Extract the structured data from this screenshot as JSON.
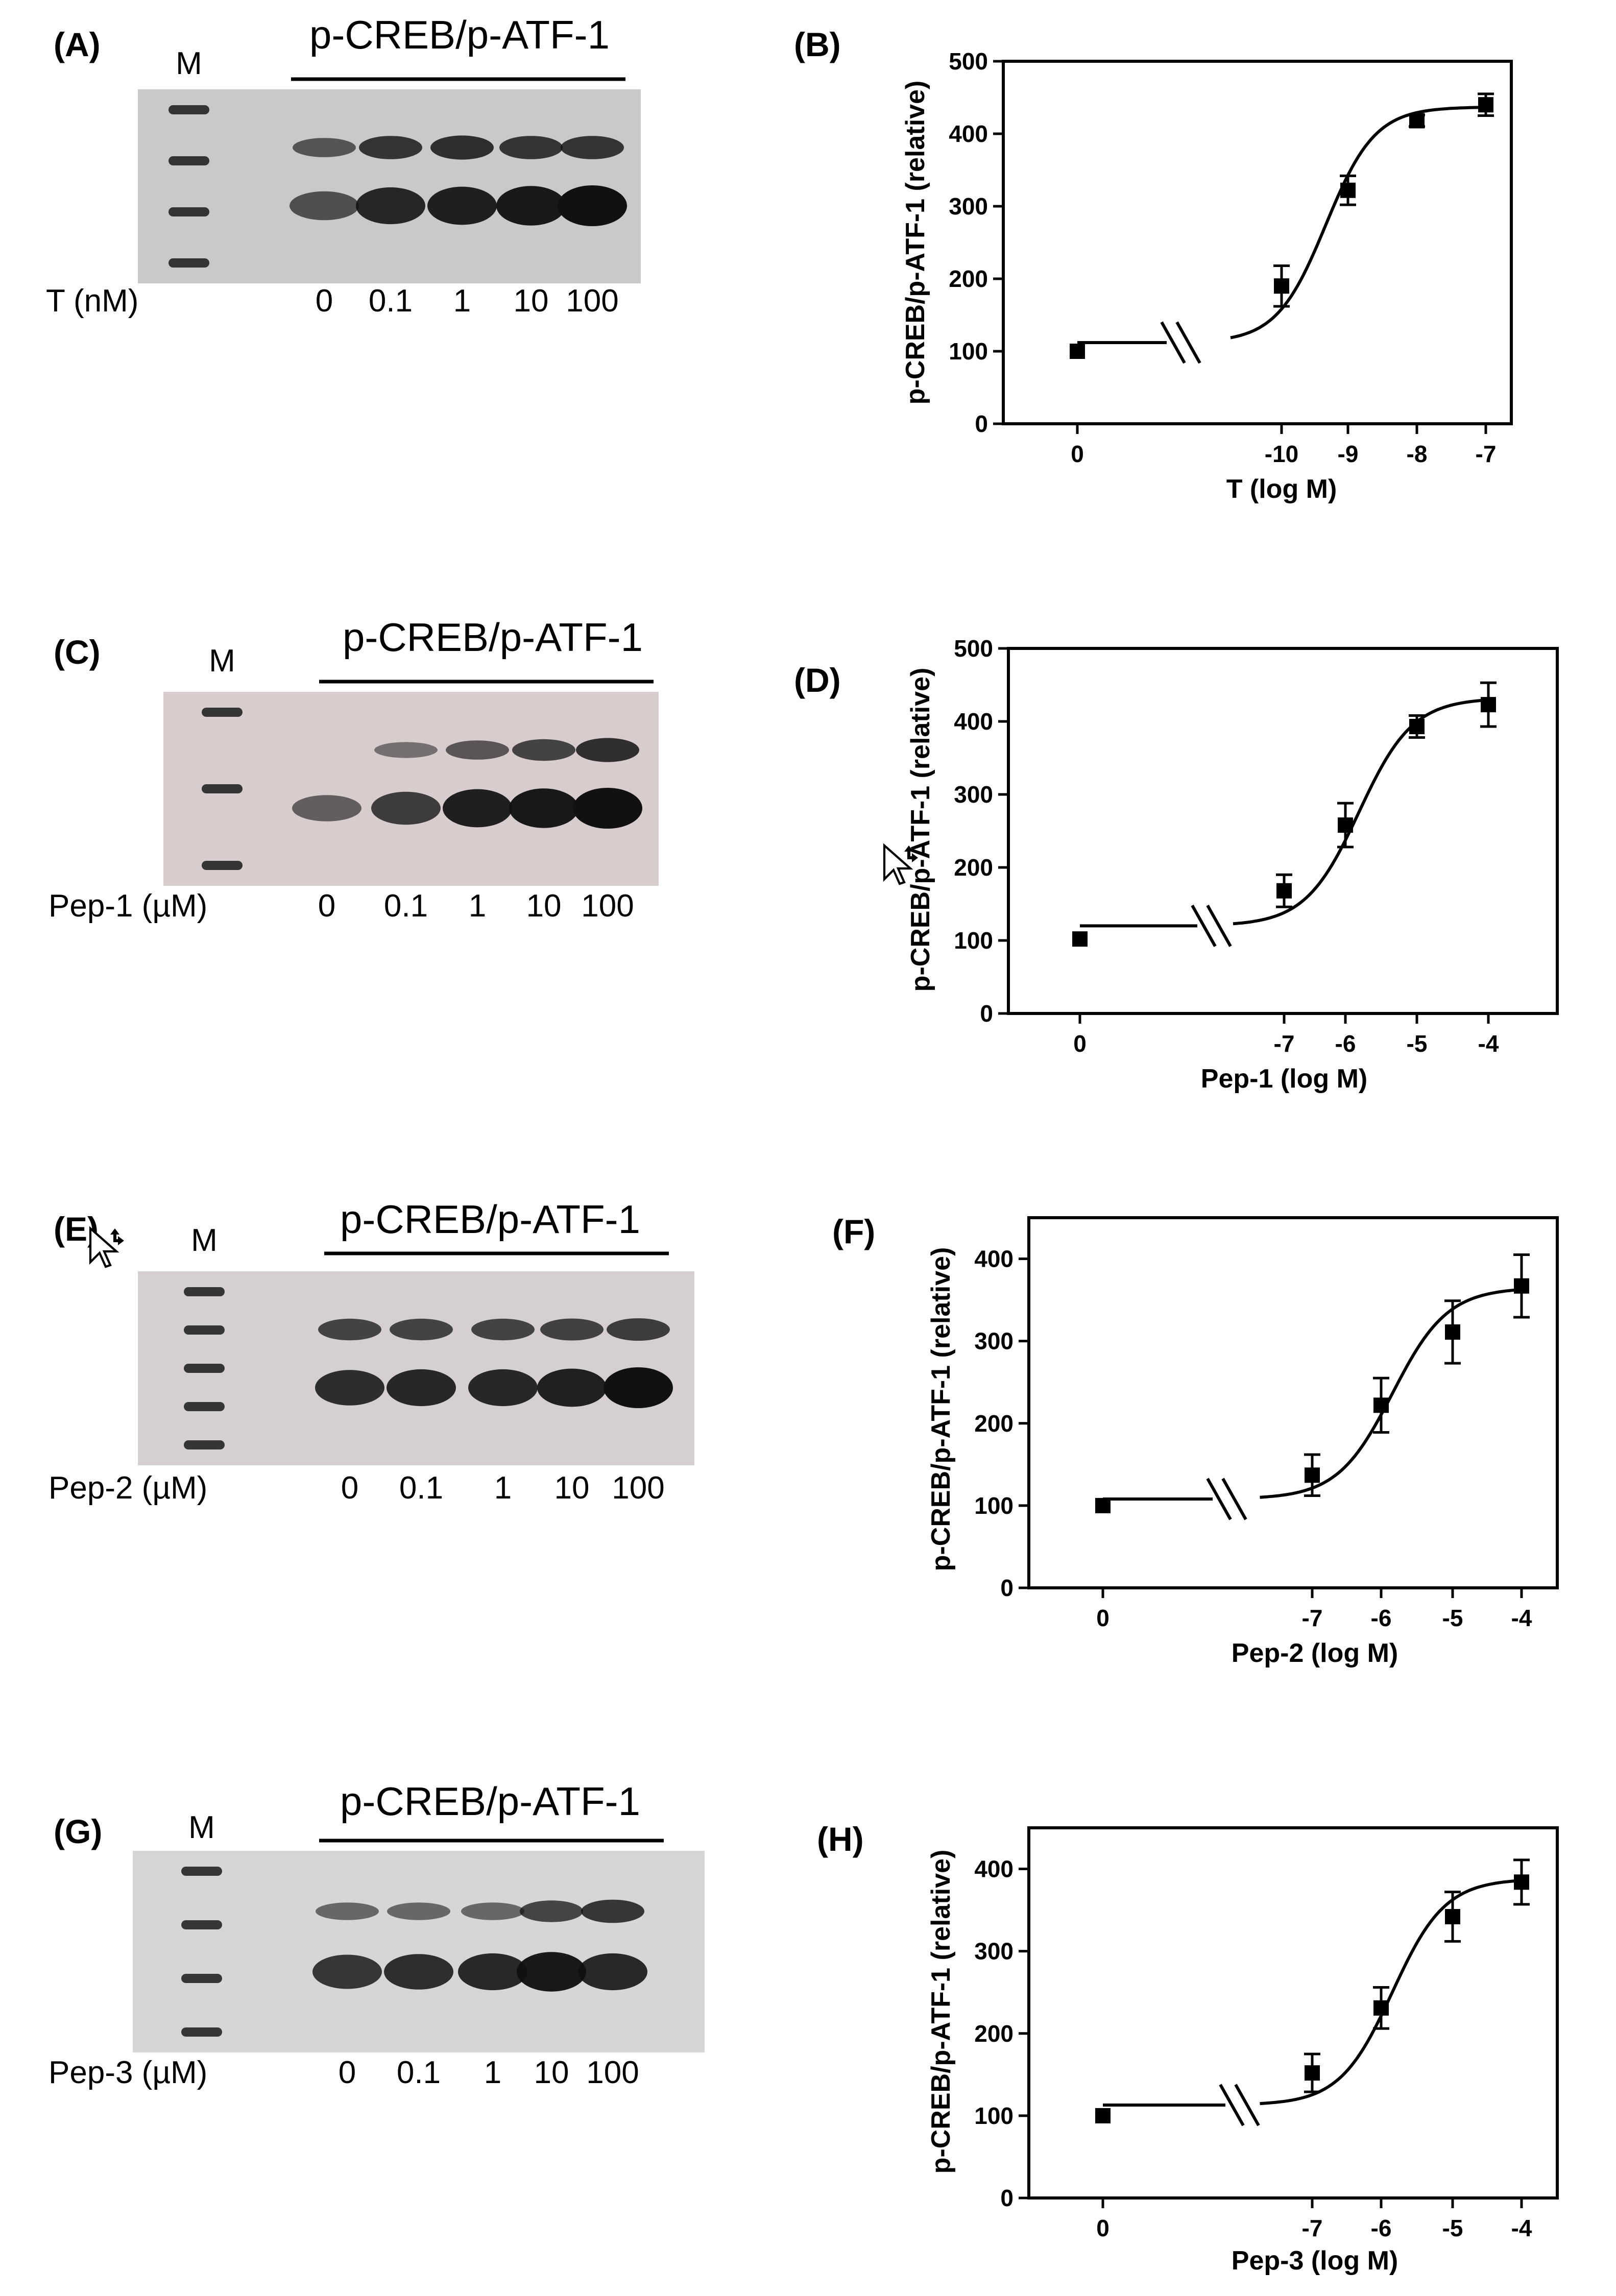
{
  "common": {
    "blot_title": "p-CREB/p-ATF-1",
    "marker_label": "M",
    "ylabel": "p-CREB/p-ATF-1 (relative)"
  },
  "panels": [
    {
      "blot_letter": "(A)",
      "chart_letter": "(B)",
      "dose_label": "T (nM)",
      "lanes": [
        "0",
        "0.1",
        "1",
        "10",
        "100"
      ],
      "bg": "#c9c9c9",
      "upper_band": [
        0.55,
        0.8,
        0.85,
        0.8,
        0.8
      ],
      "lower_band": [
        0.55,
        0.85,
        0.9,
        0.95,
        1.0
      ],
      "marker_bands": 4
    },
    {
      "blot_letter": "(C)",
      "chart_letter": "(D)",
      "dose_label": "Pep-1 (µM)",
      "lanes": [
        "0",
        "0.1",
        "1",
        "10",
        "100"
      ],
      "bg": "#d8cccc",
      "upper_band": [
        0.0,
        0.35,
        0.55,
        0.7,
        0.85
      ],
      "lower_band": [
        0.45,
        0.7,
        0.9,
        0.95,
        1.0
      ],
      "marker_bands": 3
    },
    {
      "blot_letter": "(E)",
      "chart_letter": "(F)",
      "dose_label": "Pep-2 (µM)",
      "lanes": [
        "0",
        "0.1",
        "1",
        "10",
        "100"
      ],
      "bg": "#d5cfcf",
      "upper_band": [
        0.7,
        0.7,
        0.7,
        0.72,
        0.75
      ],
      "lower_band": [
        0.8,
        0.85,
        0.85,
        0.9,
        1.0
      ],
      "marker_bands": 5
    },
    {
      "blot_letter": "(G)",
      "chart_letter": "(H)",
      "dose_label": "Pep-3 (µM)",
      "lanes": [
        "0",
        "0.1",
        "1",
        "10",
        "100"
      ],
      "bg": "#d6d6d6",
      "upper_band": [
        0.45,
        0.45,
        0.45,
        0.7,
        0.8
      ],
      "lower_band": [
        0.75,
        0.8,
        0.85,
        0.95,
        0.85
      ],
      "marker_bands": 4
    }
  ],
  "chart_data": [
    {
      "type": "scatter",
      "title": "",
      "xlabel": "T (log M)",
      "ylabel": "p-CREB/p-ATF-1 (relative)",
      "ylim": [
        0,
        500
      ],
      "yticks": [
        0,
        100,
        200,
        300,
        400,
        500
      ],
      "xtick_labels": [
        "0",
        "-10",
        "-9",
        "-8",
        "-7"
      ],
      "x": [
        0,
        -10,
        -9,
        -8,
        -7
      ],
      "y": [
        100,
        190,
        322,
        418,
        440
      ],
      "err": [
        0,
        28,
        20,
        8,
        15
      ],
      "fit": {
        "bottom": 112,
        "top": 437,
        "log_ec50": -9.35,
        "hill": 1.2,
        "baseline_y": 112
      }
    },
    {
      "type": "scatter",
      "title": "",
      "xlabel": "Pep-1 (log M)",
      "ylabel": "p-CREB/p-ATF-1 (relative)",
      "ylim": [
        0,
        500
      ],
      "yticks": [
        0,
        100,
        200,
        300,
        400,
        500
      ],
      "xtick_labels": [
        "0",
        "-7",
        "-6",
        "-5",
        "-4"
      ],
      "x": [
        0,
        -7,
        -6,
        -5,
        -4
      ],
      "y": [
        102,
        168,
        258,
        393,
        423
      ],
      "err": [
        0,
        22,
        30,
        15,
        30
      ],
      "fit": {
        "bottom": 120,
        "top": 432,
        "log_ec50": -5.9,
        "hill": 1.1,
        "baseline_y": 120
      }
    },
    {
      "type": "scatter",
      "title": "",
      "xlabel": "Pep-2 (log M)",
      "ylabel": "p-CREB/p-ATF-1 (relative)",
      "ylim": [
        0,
        450
      ],
      "yticks": [
        0,
        100,
        200,
        300,
        400
      ],
      "xtick_labels": [
        "0",
        "-7",
        "-6",
        "-5",
        "-4"
      ],
      "x": [
        0,
        -7,
        -6,
        -5,
        -4
      ],
      "y": [
        100,
        137,
        222,
        311,
        367
      ],
      "err": [
        0,
        25,
        33,
        38,
        38
      ],
      "fit": {
        "bottom": 108,
        "top": 365,
        "log_ec50": -5.85,
        "hill": 1.1,
        "baseline_y": 108
      }
    },
    {
      "type": "scatter",
      "title": "",
      "xlabel": "Pep-3 (log M)",
      "ylabel": "p-CREB/p-ATF-1 (relative)",
      "ylim": [
        0,
        450
      ],
      "yticks": [
        0,
        100,
        200,
        300,
        400
      ],
      "xtick_labels": [
        "0",
        "-7",
        "-6",
        "-5",
        "-4"
      ],
      "x": [
        0,
        -7,
        -6,
        -5,
        -4
      ],
      "y": [
        100,
        152,
        231,
        342,
        384
      ],
      "err": [
        0,
        23,
        25,
        30,
        27
      ],
      "fit": {
        "bottom": 113,
        "top": 388,
        "log_ec50": -5.85,
        "hill": 1.15,
        "baseline_y": 113
      }
    }
  ]
}
